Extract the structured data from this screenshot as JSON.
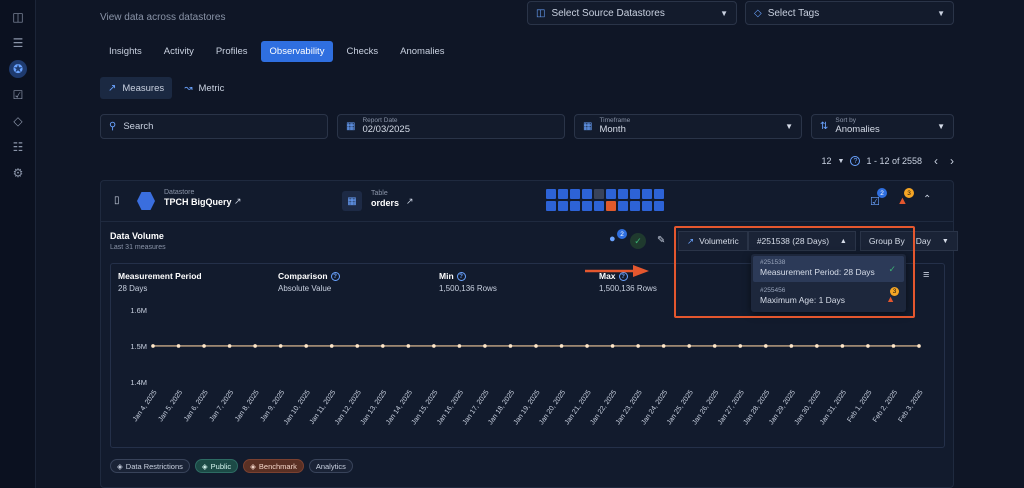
{
  "page": {
    "subtitle": "View data across datastores",
    "source_select": "Select Source Datastores",
    "tags_select": "Select Tags"
  },
  "tabs": [
    "Insights",
    "Activity",
    "Profiles",
    "Observability",
    "Checks",
    "Anomalies"
  ],
  "active_tab": "Observability",
  "subtabs": {
    "measures": "Measures",
    "metric": "Metric"
  },
  "filters": {
    "search_placeholder": "Search",
    "report_date_label": "Report Date",
    "report_date_value": "02/03/2025",
    "timeframe_label": "Timeframe",
    "timeframe_value": "Month",
    "sort_label": "Sort by",
    "sort_value": "Anomalies"
  },
  "pager": {
    "page_size": "12",
    "range": "1 - 12 of 2558"
  },
  "card": {
    "datastore_label": "Datastore",
    "datastore_name": "TPCH BigQuery",
    "table_label": "Table",
    "table_name": "orders",
    "checks_badge": "2",
    "anomalies_badge": "3",
    "heat_states": [
      "ok",
      "ok",
      "ok",
      "ok",
      "gray",
      "ok",
      "ok",
      "ok",
      "ok",
      "ok",
      "ok",
      "ok",
      "ok",
      "ok",
      "ok",
      "warn",
      "ok",
      "ok",
      "ok",
      "ok"
    ]
  },
  "volume": {
    "title": "Data Volume",
    "subtitle": "Last 31 measures",
    "users_badge": "2",
    "volumetric_label": "Volumetric",
    "selected_check": "#251538 (28 Days)",
    "group_by_label": "Group By",
    "group_by_value": "Day",
    "stats": [
      {
        "label": "Measurement Period",
        "value": "28 Days"
      },
      {
        "label": "Comparison",
        "value": "Absolute Value"
      },
      {
        "label": "Min",
        "value": "1,500,136 Rows"
      },
      {
        "label": "Max",
        "value": "1,500,136 Rows"
      }
    ],
    "dropdown": [
      {
        "id": "#251538",
        "text": "Measurement Period: 28 Days",
        "status": "check"
      },
      {
        "id": "#255456",
        "text": "Maximum Age: 1 Days",
        "status": "warn",
        "badge": "3"
      }
    ]
  },
  "chart_data": {
    "type": "line",
    "categories": [
      "Jan 4, 2025",
      "Jan 5, 2025",
      "Jan 6, 2025",
      "Jan 7, 2025",
      "Jan 8, 2025",
      "Jan 9, 2025",
      "Jan 10, 2025",
      "Jan 11, 2025",
      "Jan 12, 2025",
      "Jan 13, 2025",
      "Jan 14, 2025",
      "Jan 15, 2025",
      "Jan 16, 2025",
      "Jan 17, 2025",
      "Jan 18, 2025",
      "Jan 19, 2025",
      "Jan 20, 2025",
      "Jan 21, 2025",
      "Jan 22, 2025",
      "Jan 23, 2025",
      "Jan 24, 2025",
      "Jan 25, 2025",
      "Jan 26, 2025",
      "Jan 27, 2025",
      "Jan 28, 2025",
      "Jan 29, 2025",
      "Jan 30, 2025",
      "Jan 31, 2025",
      "Feb 1, 2025",
      "Feb 2, 2025",
      "Feb 3, 2025"
    ],
    "values": [
      1500136,
      1500136,
      1500136,
      1500136,
      1500136,
      1500136,
      1500136,
      1500136,
      1500136,
      1500136,
      1500136,
      1500136,
      1500136,
      1500136,
      1500136,
      1500136,
      1500136,
      1500136,
      1500136,
      1500136,
      1500136,
      1500136,
      1500136,
      1500136,
      1500136,
      1500136,
      1500136,
      1500136,
      1500136,
      1500136,
      1500136
    ],
    "yticks": [
      "1.6M",
      "1.5M",
      "1.4M"
    ],
    "ylim": [
      1400000,
      1600000
    ],
    "color": "#f0c89a"
  },
  "tags": [
    "Data Restrictions",
    "Public",
    "Benchmark",
    "Analytics"
  ],
  "colors": {
    "accent": "#2f6fe0",
    "highlight": "#e4572e",
    "warning": "#f5a524",
    "ok": "#3bb273"
  }
}
